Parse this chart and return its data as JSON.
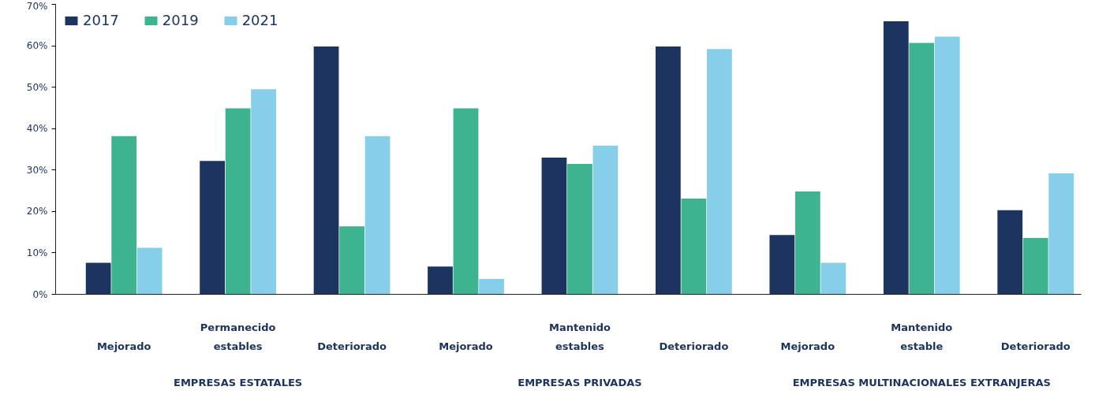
{
  "chart_data": {
    "type": "bar",
    "categories": [
      "Mejorado",
      "Permanecido\nestables",
      "Deteriorado",
      "Mejorado",
      "Mantenido\nestables",
      "Deteriorado",
      "Mejorado",
      "Mantenido\nestable",
      "Deteriorado"
    ],
    "series": [
      {
        "name": "2017",
        "color": "#1d3461",
        "values": [
          7.6,
          32.2,
          59.8,
          6.7,
          33.0,
          59.8,
          14.3,
          65.9,
          20.3
        ]
      },
      {
        "name": "2019",
        "color": "#3db38f",
        "values": [
          38.2,
          44.9,
          16.4,
          44.9,
          31.5,
          23.1,
          24.8,
          60.7,
          13.6
        ]
      },
      {
        "name": "2021",
        "color": "#87ceeb",
        "values": [
          11.2,
          49.5,
          38.2,
          3.7,
          35.9,
          59.2,
          7.6,
          62.2,
          29.2
        ]
      }
    ],
    "ylim": [
      0,
      70
    ],
    "yticks": [
      {
        "value": 0,
        "label": "0%"
      },
      {
        "value": 10,
        "label": "10%"
      },
      {
        "value": 20,
        "label": "20%"
      },
      {
        "value": 30,
        "label": "30%"
      },
      {
        "value": 40,
        "label": "40%"
      },
      {
        "value": 50,
        "label": "50%"
      },
      {
        "value": 60,
        "label": "60%"
      },
      {
        "value": 70,
        "label": "70%"
      }
    ],
    "annotations": [
      "EMPRESAS ESTATALES",
      "EMPRESAS PRIVADAS",
      "EMPRESAS MULTINACIONALES EXTRANJERAS"
    ],
    "grid": false,
    "legend": "top left"
  }
}
